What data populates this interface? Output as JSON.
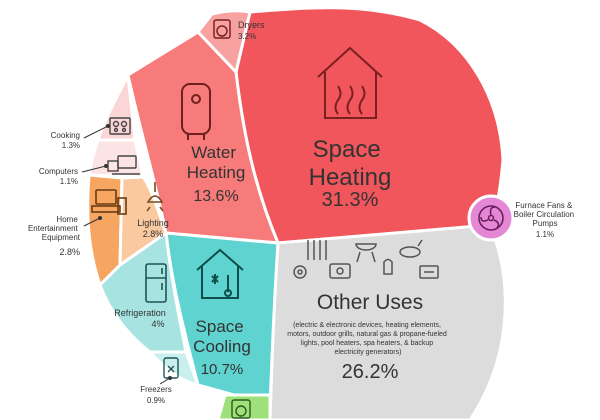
{
  "chart_data": {
    "type": "pie",
    "slices": [
      {
        "key": "space_heating",
        "label_lines": [
          "Space",
          "Heating"
        ],
        "value": 31.3,
        "value_label": "31.3%",
        "color": "#f0565b",
        "icon": "house-heat-icon"
      },
      {
        "key": "other_uses",
        "label_lines": [
          "Other Uses"
        ],
        "value": 26.2,
        "value_label": "26.2%",
        "color": "#dcdcdc",
        "icon": "appliances-icons",
        "note_lines": [
          "(electric & electronic devices,  heating elements,",
          "motors, outdoor grills, natural gas & propane-fueled",
          "lights, pool heaters, spa heaters, & backup",
          "electricity generators)"
        ]
      },
      {
        "key": "water_heating",
        "label_lines": [
          "Water",
          "Heating"
        ],
        "value": 13.6,
        "value_label": "13.6%",
        "color": "#f77b7b",
        "icon": "water-heater-icon"
      },
      {
        "key": "space_cooling",
        "label_lines": [
          "Space",
          "Cooling"
        ],
        "value": 10.7,
        "value_label": "10.7%",
        "color": "#5fd3cf",
        "icon": "house-cooling-icon"
      },
      {
        "key": "refrigeration",
        "label_lines": [
          "Refrigeration"
        ],
        "value": 4,
        "value_label": "4%",
        "color": "#a7e4e1",
        "icon": "refrigerator-icon"
      },
      {
        "key": "dryers",
        "label_lines": [
          "Dryers"
        ],
        "value": 3.2,
        "value_label": "3.2%",
        "color": "#f7a1a1",
        "icon": "dryer-icon"
      },
      {
        "key": "lighting",
        "label_lines": [
          "Lighting"
        ],
        "value": 2.8,
        "value_label": "2.8%",
        "color": "#fac9a0",
        "icon": "lightbulb-icon"
      },
      {
        "key": "home_entertainment",
        "label_lines": [
          "Home",
          "Entertainment",
          "Equipment"
        ],
        "value": 2.8,
        "value_label": "2.8%",
        "color": "#f6a661",
        "icon": "tv-icon"
      },
      {
        "key": "cooking",
        "label_lines": [
          "Cooking"
        ],
        "value": 1.3,
        "value_label": "1.3%",
        "color": "#fbd6d6",
        "icon": "stove-icon"
      },
      {
        "key": "computers",
        "label_lines": [
          "Computers"
        ],
        "value": 1.1,
        "value_label": "1.1%",
        "color": "#fde4e4",
        "icon": "computer-icon"
      },
      {
        "key": "furnace_fans",
        "label_lines": [
          "Furnace Fans &",
          "Boiler Circulation",
          "Pumps"
        ],
        "value": 1.1,
        "value_label": "1.1%",
        "color": "#e488d6",
        "icon": "fan-icon"
      },
      {
        "key": "freezers",
        "label_lines": [
          "Freezers"
        ],
        "value": 0.9,
        "value_label": "0.9%",
        "color": "#c9f0ee",
        "icon": "freezer-icon"
      },
      {
        "key": "washers",
        "label_lines": [],
        "value": null,
        "value_label": "",
        "color": "#9ee07a",
        "icon": "washer-icon"
      }
    ],
    "colors": {
      "label_text": "#333333",
      "value_text_light": "#ffffff",
      "value_text_dark": "#555555",
      "outline": "#ffffff"
    }
  }
}
